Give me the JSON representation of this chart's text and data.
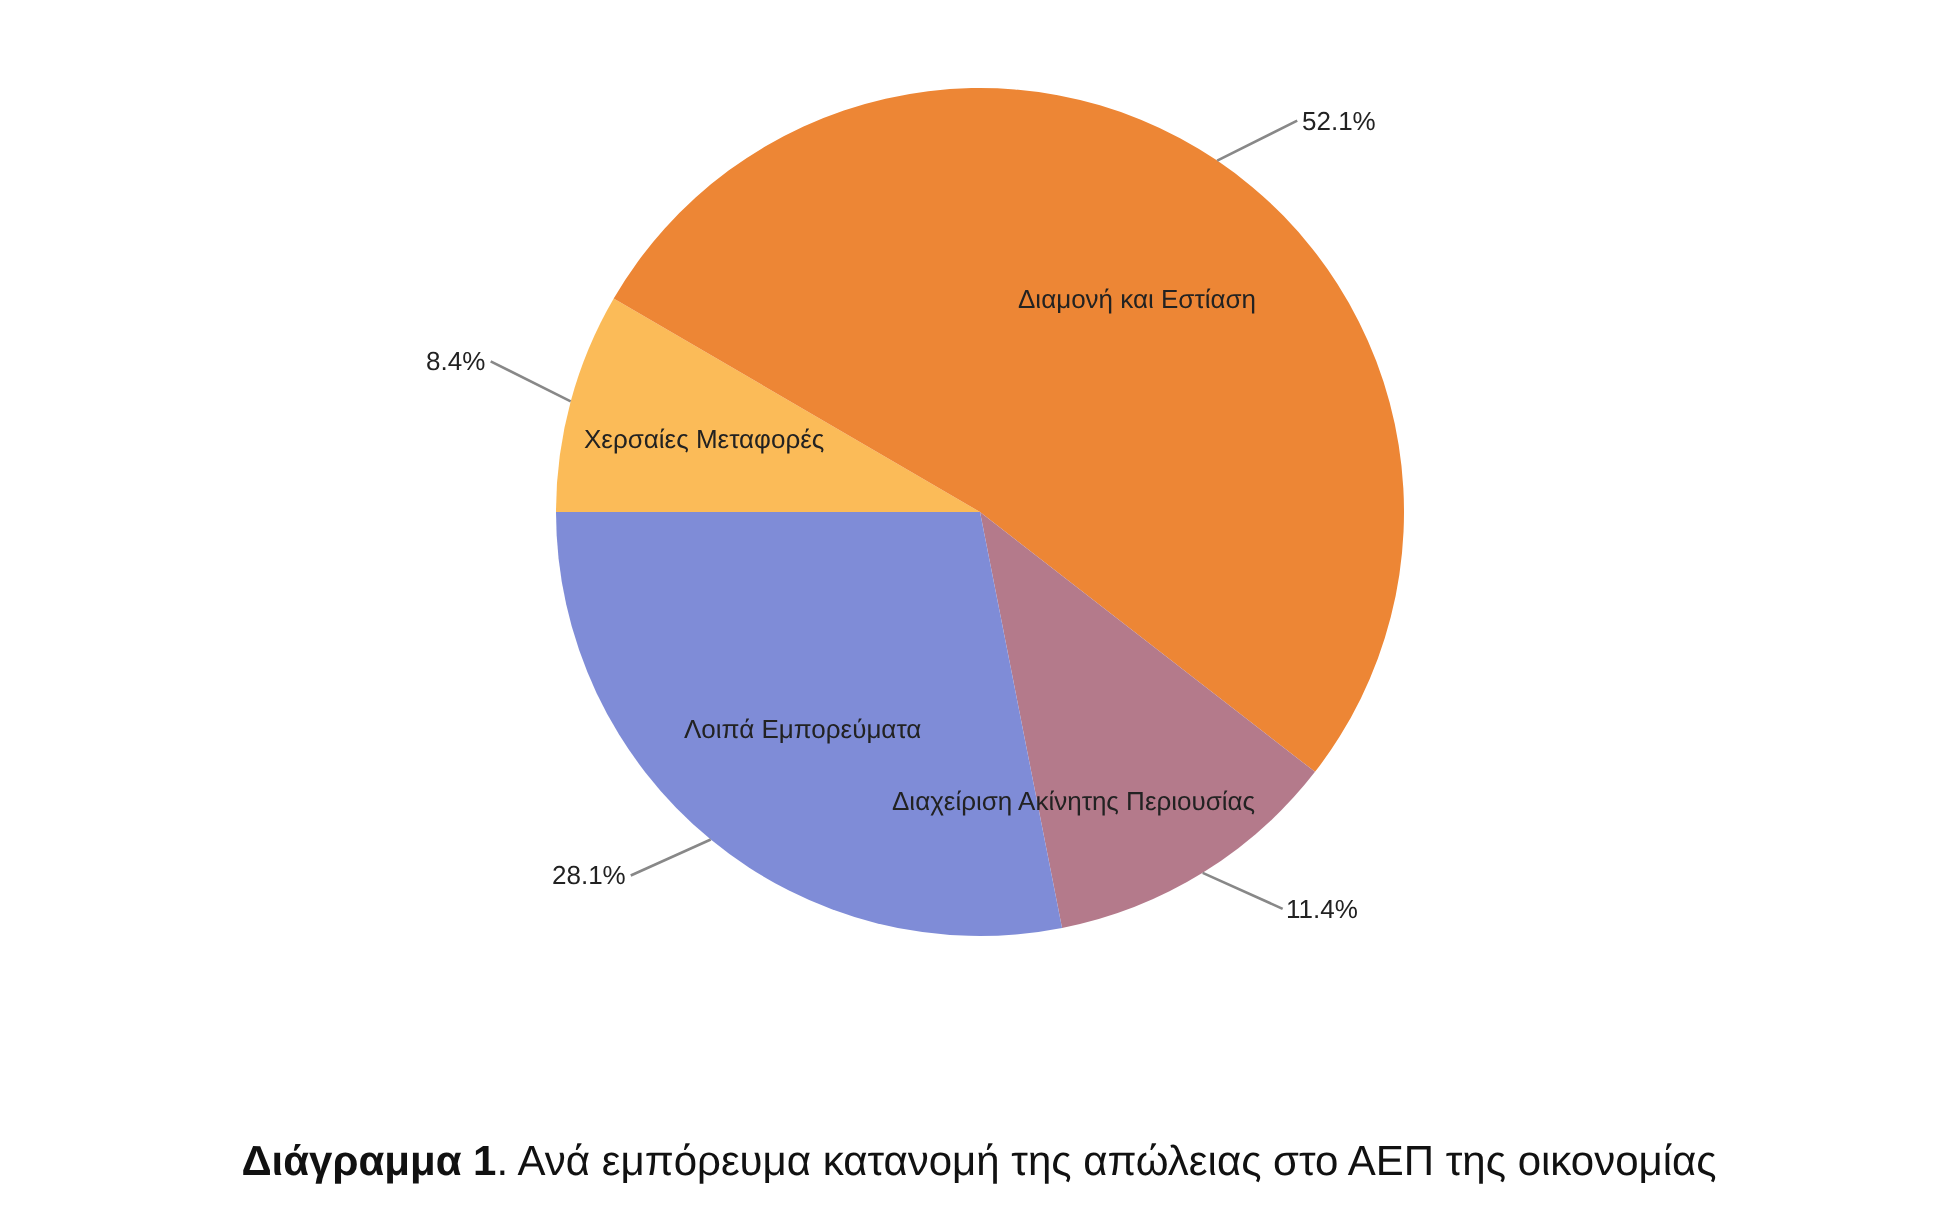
{
  "chart_data": {
    "type": "pie",
    "title": "Διάγραμμα 1. Ανά εμπόρευμα κατανομή της απώλειας στο ΑΕΠ της οικονομίας",
    "categories": [
      "Χερσαίες Μεταφορές",
      "Διαμονή και Εστίαση",
      "Διαχείριση Ακίνητης Περιουσίας",
      "Λοιπά Εμπορεύματα"
    ],
    "values": [
      8.4,
      52.1,
      11.4,
      28.1
    ],
    "colors": [
      "#fbbb58",
      "#ed8635",
      "#b47a8b",
      "#7f8cd7"
    ],
    "value_labels": [
      "8.4%",
      "52.1%",
      "11.4%",
      "28.1%"
    ]
  }
}
